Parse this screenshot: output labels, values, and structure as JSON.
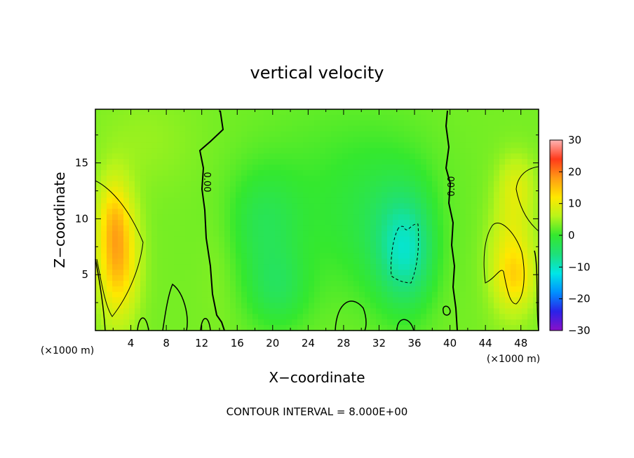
{
  "chart_data": {
    "type": "heatmap",
    "title": "vertical velocity",
    "xlabel": "X−coordinate",
    "ylabel": "Z−coordinate",
    "x_unit_label_left": "(×1000 m)",
    "x_unit_label_right": "(×1000 m)",
    "xlim": [
      0,
      50
    ],
    "ylim": [
      0,
      19.8
    ],
    "x_ticks": [
      4,
      8,
      12,
      16,
      20,
      24,
      28,
      32,
      36,
      40,
      44,
      48
    ],
    "x_tick_labels": [
      "4",
      "8",
      "12",
      "16",
      "20",
      "24",
      "28",
      "32",
      "36",
      "40",
      "44",
      "48"
    ],
    "y_ticks": [
      5,
      10,
      15
    ],
    "y_tick_labels": [
      "5",
      "10",
      "15"
    ],
    "colorbar": {
      "range": [
        -30,
        30
      ],
      "ticks": [
        30,
        20,
        10,
        0,
        -10,
        -20,
        -30
      ],
      "tick_labels": [
        "30",
        "20",
        "10",
        "0",
        "−10",
        "−20",
        "−30"
      ],
      "colors": [
        "#8a10c8",
        "#2a22e8",
        "#0090ff",
        "#00e6e6",
        "#1ee07a",
        "#34e82e",
        "#b8f41a",
        "#ffe800",
        "#ff9c14",
        "#ff3a1a",
        "#ffb4b4"
      ]
    },
    "contour_interval_text": "CONTOUR INTERVAL = 8.000E+00",
    "contour_labels": [
      {
        "text": "0.00",
        "x": 12.2,
        "z": 13.5
      },
      {
        "text": "0.00",
        "x": 40.4,
        "z": 13.5
      }
    ],
    "background_value": 3,
    "features": [
      {
        "x": 2.5,
        "z": 6.5,
        "sx": 1.6,
        "sz": 3.8,
        "value": 13
      },
      {
        "x": 2.0,
        "z": 10.5,
        "sx": 1.2,
        "sz": 2.5,
        "value": 5
      },
      {
        "x": 47.0,
        "z": 6.5,
        "sx": 1.8,
        "sz": 3.5,
        "value": 8
      },
      {
        "x": 47.5,
        "z": 13.0,
        "sx": 1.5,
        "sz": 2.0,
        "value": 5
      },
      {
        "x": 47.5,
        "z": 4.5,
        "sx": 1.5,
        "sz": 1.6,
        "value": 4
      },
      {
        "x": 35.0,
        "z": 7.0,
        "sx": 2.3,
        "sz": 3.5,
        "value": -10
      },
      {
        "x": 33.0,
        "z": 10.0,
        "sx": 4.5,
        "sz": 5.0,
        "value": -4
      },
      {
        "x": 19.0,
        "z": 9.5,
        "sx": 3.0,
        "sz": 3.5,
        "value": -5
      },
      {
        "x": 20.5,
        "z": 3.5,
        "sx": 2.5,
        "sz": 2.5,
        "value": -5
      },
      {
        "x": 26.0,
        "z": 12.0,
        "sx": 6.0,
        "sz": 6.0,
        "value": -2
      },
      {
        "x": 5.5,
        "z": 17.0,
        "sx": 4.0,
        "sz": 3.0,
        "value": 1.5
      },
      {
        "x": 14.0,
        "z": 6.5,
        "sx": 1.5,
        "sz": 4.0,
        "value": 1
      },
      {
        "x": 39.0,
        "z": 8.0,
        "sx": 1.5,
        "sz": 4.0,
        "value": 1
      }
    ]
  }
}
